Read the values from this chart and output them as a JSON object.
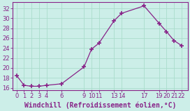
{
  "x": [
    0,
    1,
    2,
    3,
    4,
    6,
    9,
    10,
    11,
    13,
    14,
    17,
    19,
    20,
    21,
    22
  ],
  "y": [
    18.5,
    16.5,
    16.3,
    16.3,
    16.5,
    16.8,
    20.2,
    23.8,
    25.0,
    29.5,
    31.0,
    32.5,
    29.0,
    27.3,
    25.5,
    24.5
  ],
  "line_color": "#882288",
  "marker": "+",
  "marker_size": 4,
  "marker_lw": 1.2,
  "bg_color": "#cceee8",
  "grid_color": "#aaddcc",
  "xlim": [
    -0.5,
    22.8
  ],
  "ylim": [
    15.5,
    33.2
  ],
  "xticks": [
    0,
    1,
    2,
    3,
    4,
    6,
    9,
    10,
    11,
    13,
    14,
    17,
    19,
    20,
    21,
    22
  ],
  "yticks": [
    16,
    18,
    20,
    22,
    24,
    26,
    28,
    30,
    32
  ],
  "xlabel": "Windchill (Refroidissement éolien,°C)",
  "xlabel_fontsize": 7,
  "tick_fontsize": 6,
  "tick_color": "#882288",
  "spine_color": "#882288",
  "axis_label_color": "#882288",
  "line_width": 0.9
}
